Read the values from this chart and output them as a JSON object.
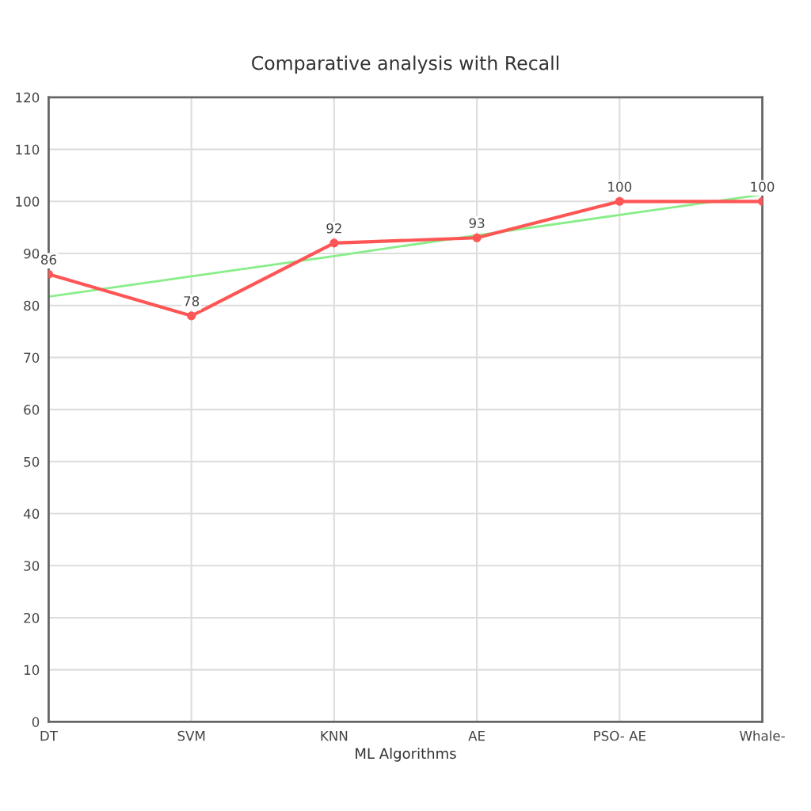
{
  "chart_data": {
    "type": "line",
    "title": "Comparative analysis with Recall",
    "xlabel": "ML Algorithms",
    "categories": [
      "DT",
      "SVM",
      "KNN",
      "AE",
      "PSO- AE",
      "Whale-"
    ],
    "series": [
      {
        "color": "#ff5555",
        "values": [
          86,
          78,
          92,
          93,
          100,
          100
        ],
        "value_labels": [
          "86",
          "78",
          "92",
          "93",
          "100",
          "100"
        ],
        "marker": "circle"
      },
      {
        "color": "#88ee88",
        "values": [
          81.7,
          85.6,
          89.5,
          93.5,
          97.4,
          101.3
        ],
        "marker": "none"
      }
    ],
    "ylim": [
      0,
      120
    ],
    "yticks": [
      0,
      10,
      20,
      30,
      40,
      50,
      60,
      70,
      80,
      90,
      100,
      110,
      120
    ],
    "grid": true,
    "legend": false,
    "line_style": "solid"
  }
}
